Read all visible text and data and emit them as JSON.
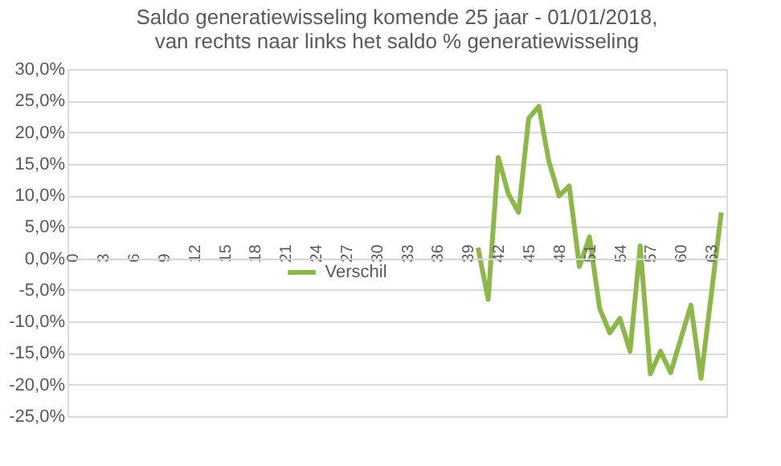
{
  "chart_data": {
    "type": "line",
    "title": [
      "Saldo generatiewisseling komende 25 jaar - 01/01/2018,",
      "van rechts naar links  het saldo % generatiewisseling"
    ],
    "categories": [
      "0",
      null,
      null,
      "3",
      null,
      null,
      "6",
      null,
      null,
      "9",
      null,
      null,
      "12",
      null,
      null,
      "15",
      null,
      null,
      "18",
      null,
      null,
      "21",
      null,
      null,
      "24",
      null,
      null,
      "27",
      null,
      null,
      "30",
      null,
      null,
      "33",
      null,
      null,
      "36",
      null,
      null,
      "39",
      null,
      null,
      "42",
      null,
      null,
      "45",
      null,
      null,
      "48",
      null,
      null,
      "51",
      null,
      null,
      "54",
      null,
      null,
      "57",
      null,
      null,
      "60",
      null,
      null,
      "63",
      null
    ],
    "series": [
      {
        "name": "Verschil",
        "color": "#8cb84a",
        "values": [
          null,
          null,
          null,
          null,
          null,
          null,
          null,
          null,
          null,
          null,
          null,
          null,
          null,
          null,
          null,
          null,
          null,
          null,
          null,
          null,
          null,
          null,
          null,
          null,
          null,
          null,
          null,
          null,
          null,
          null,
          null,
          null,
          null,
          null,
          null,
          null,
          null,
          null,
          null,
          null,
          1.7,
          -6.5,
          16.0,
          10.2,
          7.3,
          22.2,
          24.1,
          15.3,
          9.9,
          11.5,
          -1.3,
          3.4,
          -7.9,
          -11.8,
          -9.5,
          -14.7,
          2.0,
          -18.3,
          -14.7,
          -18.1,
          -12.8,
          -7.4,
          -19.0,
          -5.9,
          7.3
        ]
      }
    ],
    "ylim": [
      -25,
      30
    ],
    "yticks": [
      {
        "value": -25,
        "label": "-25,0%"
      },
      {
        "value": -20,
        "label": "-20,0%"
      },
      {
        "value": -15,
        "label": "-15,0%"
      },
      {
        "value": -10,
        "label": "-10,0%"
      },
      {
        "value": -5,
        "label": "-5,0%"
      },
      {
        "value": 0,
        "label": "0,0%"
      },
      {
        "value": 5,
        "label": "5,0%"
      },
      {
        "value": 10,
        "label": "10,0%"
      },
      {
        "value": 15,
        "label": "15,0%"
      },
      {
        "value": 20,
        "label": "20,0%"
      },
      {
        "value": 25,
        "label": "25,0%"
      },
      {
        "value": 30,
        "label": "30,0%"
      }
    ],
    "grid": "y",
    "legend": "center",
    "marker": "none",
    "line_style": "solid"
  }
}
